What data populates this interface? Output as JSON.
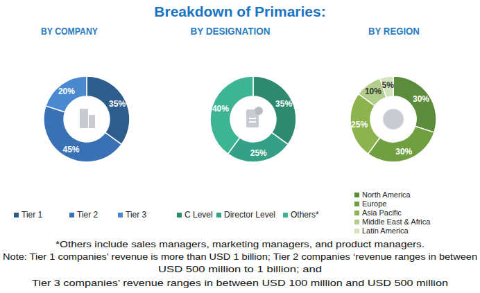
{
  "title": "Breakdown of Primaries:",
  "chart_data": [
    {
      "type": "donut",
      "title": "BY COMPANY",
      "categories": [
        "Tier 1",
        "Tier 2",
        "Tier 3"
      ],
      "values": [
        35,
        45,
        20
      ],
      "value_labels": [
        "35%",
        "45%",
        "20%"
      ],
      "colors": [
        "#2c5d8c",
        "#3a70b4",
        "#4a89cf"
      ],
      "data_labels": true,
      "legend": "bottom"
    },
    {
      "type": "donut",
      "title": "BY DESIGNATION",
      "categories": [
        "C Level",
        "Director Level",
        "Others*"
      ],
      "values": [
        35,
        25,
        40
      ],
      "value_labels": [
        "35%",
        "25%",
        "40%"
      ],
      "colors": [
        "#2e8a6f",
        "#34a085",
        "#3db594"
      ],
      "data_labels": true,
      "legend": "bottom"
    },
    {
      "type": "donut",
      "title": "BY REGION",
      "categories": [
        "North America",
        "Europe",
        "Asia Pacific",
        "Middle East & Africa",
        "Latin America"
      ],
      "values": [
        30,
        30,
        25,
        10,
        5
      ],
      "value_labels": [
        "30%",
        "30%",
        "25%",
        "10%",
        "5%"
      ],
      "colors": [
        "#5b8b3b",
        "#6f9f40",
        "#8db34f",
        "#b1cd8b",
        "#d3e3ba"
      ],
      "data_labels": true,
      "legend": "bottom"
    }
  ],
  "notes": [
    "*Others include sales managers, marketing managers, and product managers.",
    "Note: Tier 1 companies’ revenue is more than USD 1 billion; Tier 2 companies ‘revenue ranges in between",
    "USD 500 million to 1 billion; and",
    "Tier 3 companies’ revenue ranges in between USD 100 million and USD 500 million"
  ]
}
